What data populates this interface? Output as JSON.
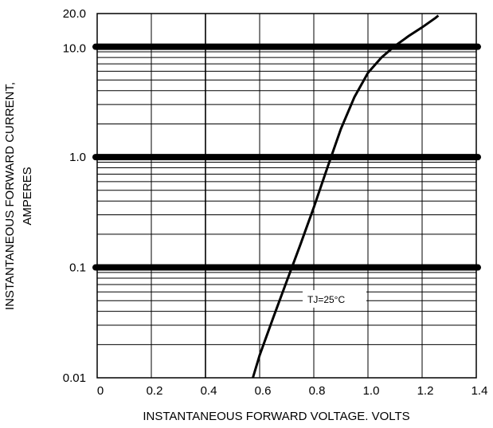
{
  "chart_data": {
    "type": "line",
    "xlabel": "INSTANTANEOUS FORWARD VOLTAGE. VOLTS",
    "ylabel_line1": "INSTANTANEOUS FORWARD CURRENT,",
    "ylabel_line2": "AMPERES",
    "xlim": [
      0,
      1.4
    ],
    "ylim": [
      0.01,
      20
    ],
    "y_scale": "log",
    "grid": true,
    "x_ticks": [
      {
        "value": 0,
        "label": "0"
      },
      {
        "value": 0.2,
        "label": "0.2"
      },
      {
        "value": 0.4,
        "label": "0.4"
      },
      {
        "value": 0.6,
        "label": "0.6"
      },
      {
        "value": 0.8,
        "label": "0.8"
      },
      {
        "value": 1.0,
        "label": "1.0"
      },
      {
        "value": 1.2,
        "label": "1.2"
      },
      {
        "value": 1.4,
        "label": "1.4"
      }
    ],
    "y_ticks": [
      {
        "value": 20,
        "label": "20.0"
      },
      {
        "value": 10,
        "label": "10.0"
      },
      {
        "value": 1,
        "label": "1.0"
      },
      {
        "value": 0.1,
        "label": "0.1"
      },
      {
        "value": 0.01,
        "label": "0.01"
      }
    ],
    "series": [
      {
        "color": "#000000",
        "points": [
          [
            0.575,
            0.01
          ],
          [
            0.6,
            0.016
          ],
          [
            0.65,
            0.035
          ],
          [
            0.7,
            0.075
          ],
          [
            0.75,
            0.16
          ],
          [
            0.8,
            0.35
          ],
          [
            0.85,
            0.8
          ],
          [
            0.9,
            1.8
          ],
          [
            0.95,
            3.5
          ],
          [
            1.0,
            5.8
          ],
          [
            1.05,
            8.0
          ],
          [
            1.1,
            10.2
          ],
          [
            1.15,
            12.5
          ],
          [
            1.2,
            15.0
          ],
          [
            1.25,
            18.3
          ],
          [
            1.26,
            19.2
          ]
        ]
      }
    ],
    "annotation": {
      "text": "TJ=25°C",
      "x": 1.0,
      "y": 0.055
    }
  }
}
